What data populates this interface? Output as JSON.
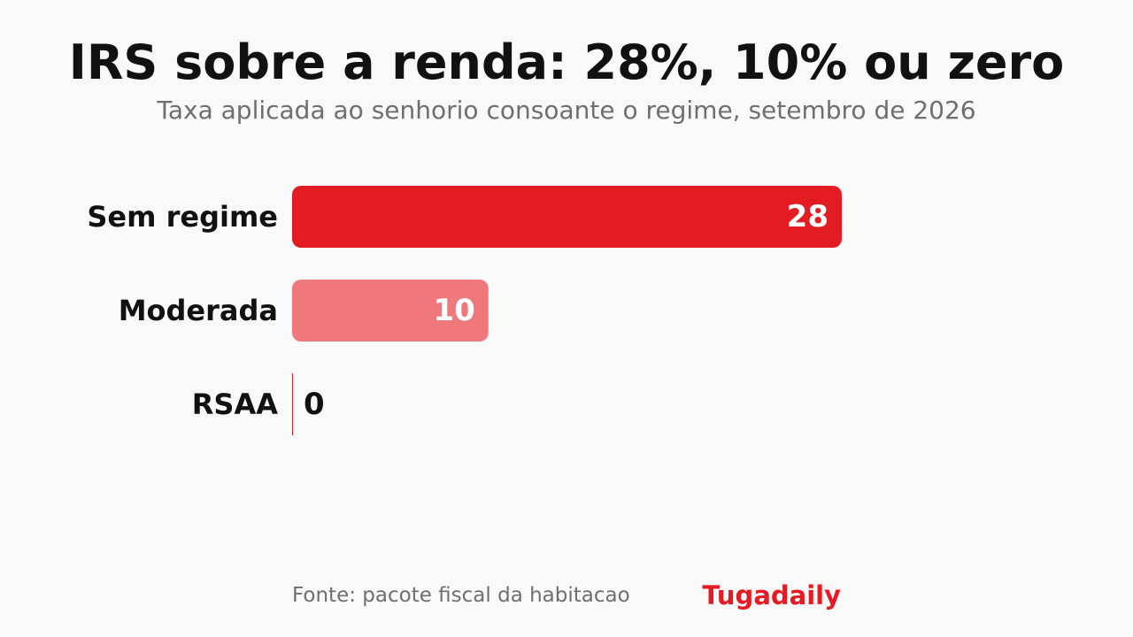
{
  "colors": {
    "primary": "#e31c23",
    "secondary": "#ef787d",
    "zero_line": "#e31c23",
    "text_dark": "#111111",
    "text_light": "#ffffff",
    "text_muted": "#6e6e73",
    "background": "#f9f9f9"
  },
  "chart_data": {
    "type": "bar",
    "orientation": "horizontal",
    "title": "IRS sobre a renda: 28%, 10% ou zero",
    "subtitle": "Taxa aplicada ao senhorio consoante o regime, setembro de 2026",
    "categories": [
      "Sem regime",
      "Moderada",
      "RSAA"
    ],
    "values": [
      28,
      10,
      0
    ],
    "value_labels": [
      "28",
      "10",
      "0"
    ],
    "xlim": [
      0,
      28
    ],
    "grid": false,
    "legend": "none"
  },
  "footer": {
    "source": "Fonte: pacote fiscal da habitacao",
    "brand": "Tugadaily"
  }
}
